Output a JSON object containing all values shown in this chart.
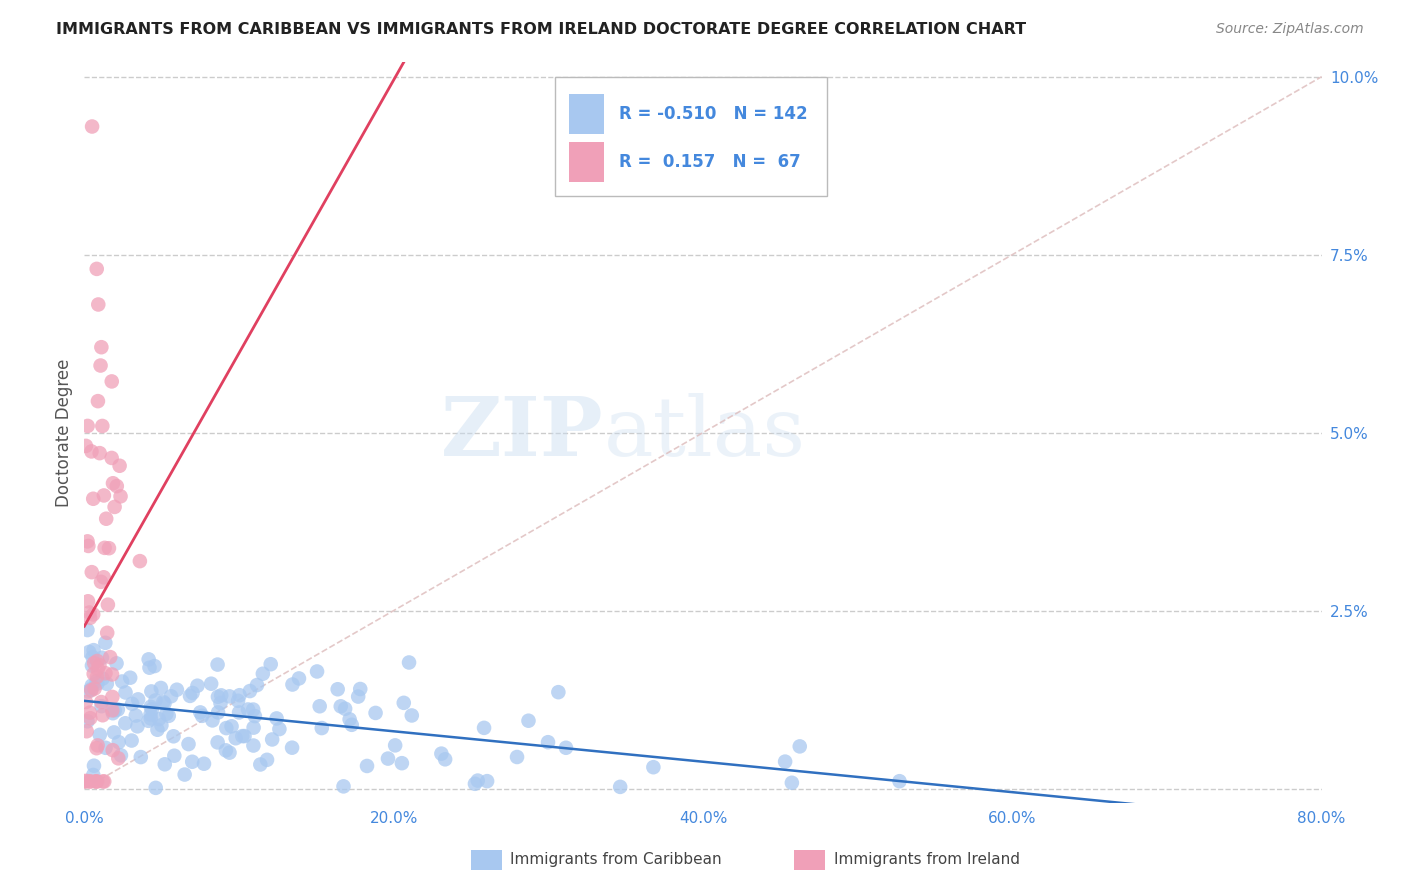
{
  "title": "IMMIGRANTS FROM CARIBBEAN VS IMMIGRANTS FROM IRELAND DOCTORATE DEGREE CORRELATION CHART",
  "source": "Source: ZipAtlas.com",
  "ylabel": "Doctorate Degree",
  "xlim": [
    0.0,
    0.8
  ],
  "ylim": [
    -0.002,
    0.102
  ],
  "yticks": [
    0.0,
    0.025,
    0.05,
    0.075,
    0.1
  ],
  "yticklabels": [
    "",
    "2.5%",
    "5.0%",
    "7.5%",
    "10.0%"
  ],
  "xticks": [
    0.0,
    0.2,
    0.4,
    0.6,
    0.8
  ],
  "xticklabels": [
    "0.0%",
    "20.0%",
    "40.0%",
    "60.0%",
    "80.0%"
  ],
  "blue_color": "#A8C8F0",
  "pink_color": "#F0A0B8",
  "blue_line_color": "#3070C0",
  "pink_line_color": "#E04060",
  "legend_blue_r": "-0.510",
  "legend_blue_n": "142",
  "legend_pink_r": "0.157",
  "legend_pink_n": "67",
  "watermark_zip": "ZIP",
  "watermark_atlas": "atlas",
  "grid_color": "#CCCCCC",
  "title_color": "#222222",
  "axis_label_color": "#555555",
  "tick_color": "#4488DD",
  "source_color": "#888888",
  "diag_color": "#DDBBBB",
  "blue_seed": 10,
  "pink_seed": 20
}
